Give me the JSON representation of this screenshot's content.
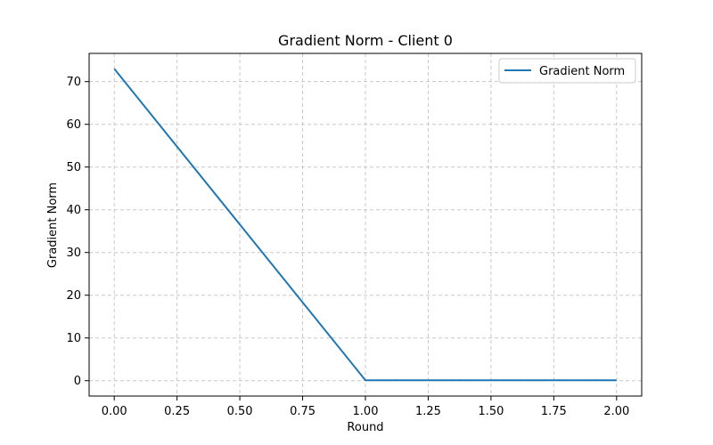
{
  "chart_data": {
    "type": "line",
    "title": "Gradient Norm - Client 0",
    "xlabel": "Round",
    "ylabel": "Gradient Norm",
    "xlim": [
      -0.1,
      2.1
    ],
    "ylim": [
      -3.6,
      76.6
    ],
    "xticks": [
      0.0,
      0.25,
      0.5,
      0.75,
      1.0,
      1.25,
      1.5,
      1.75,
      2.0
    ],
    "xtick_labels": [
      "0.00",
      "0.25",
      "0.50",
      "0.75",
      "1.00",
      "1.25",
      "1.50",
      "1.75",
      "2.00"
    ],
    "yticks": [
      0,
      10,
      20,
      30,
      40,
      50,
      60,
      70
    ],
    "ytick_labels": [
      "0",
      "10",
      "20",
      "30",
      "40",
      "50",
      "60",
      "70"
    ],
    "grid": true,
    "legend_position": "top-right",
    "series": [
      {
        "name": "Gradient Norm",
        "color": "#1f77b4",
        "x": [
          0,
          1,
          2
        ],
        "y": [
          73.0,
          0.1,
          0.1
        ]
      }
    ]
  }
}
